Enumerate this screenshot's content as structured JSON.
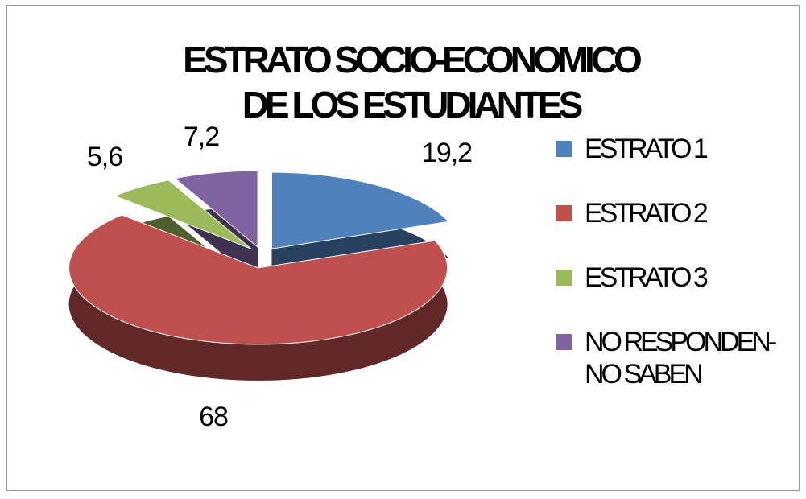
{
  "chart_data": {
    "type": "pie3d",
    "title": "ESTRATO SOCIO-ECONOMICO DE LOS ESTUDIANTES",
    "categories": [
      "ESTRATO 1",
      "ESTRATO 2",
      "ESTRATO 3",
      "NO RESPONDEN-NO SABEN"
    ],
    "values": [
      19.2,
      68,
      5.6,
      7.2
    ],
    "value_labels": [
      "19,2",
      "68",
      "5,6",
      "7,2"
    ],
    "colors": [
      "#4f81bd",
      "#c0504d",
      "#9bbb59",
      "#8064a2"
    ],
    "legend": "right"
  }
}
